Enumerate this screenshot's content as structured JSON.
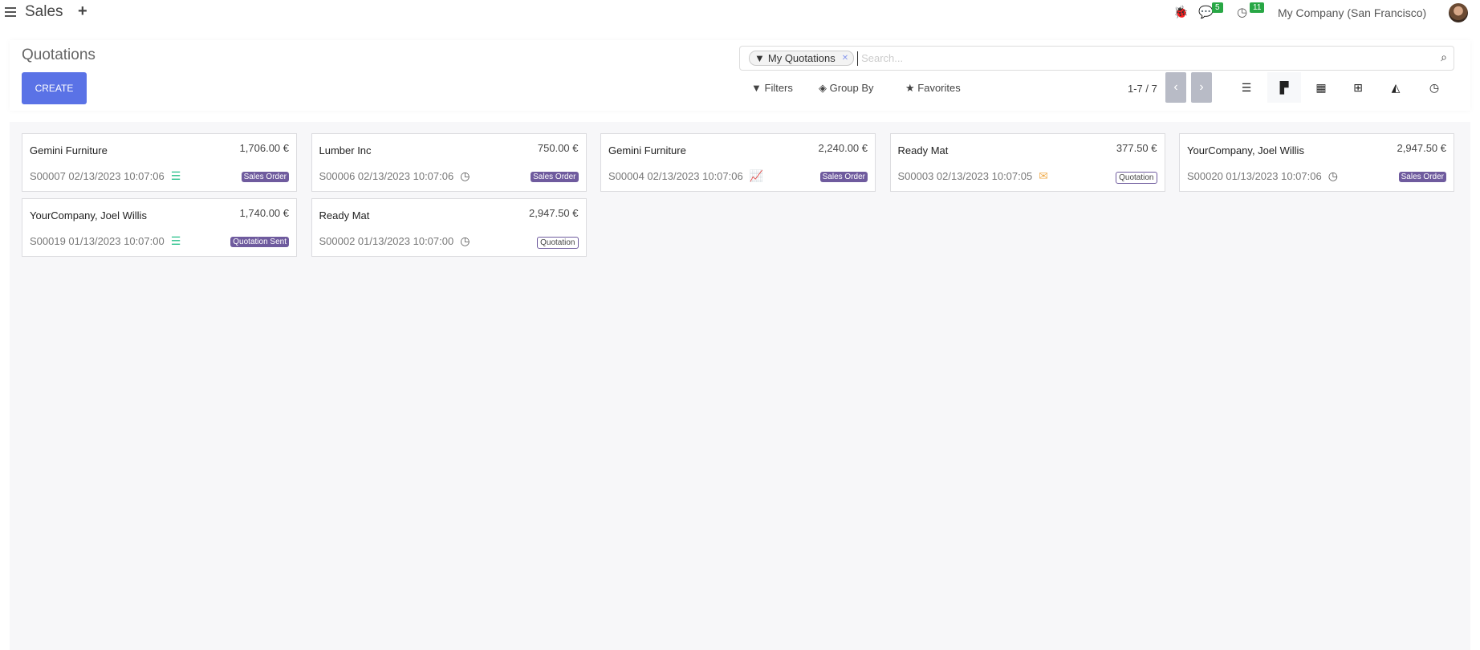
{
  "topbar": {
    "app_name": "Sales",
    "plus": "+",
    "messages_count": "5",
    "activities_count": "11",
    "company": "My Company (San Francisco)"
  },
  "control_panel": {
    "title": "Quotations",
    "create_label": "CREATE",
    "search": {
      "facet": "My Quotations",
      "placeholder": "Search..."
    },
    "filters_label": "Filters",
    "group_by_label": "Group By",
    "favorites_label": "Favorites",
    "pager": "1-7 / 7",
    "views": [
      "list",
      "kanban",
      "calendar",
      "pivot",
      "graph",
      "activity"
    ],
    "active_view": "kanban"
  },
  "colors": {
    "primary": "#5a72e6",
    "tag": "#6f5b9e",
    "green": "#28c08a",
    "orange": "#f0ad4e"
  },
  "cards": [
    {
      "customer": "Gemini Furniture",
      "amount": "1,706.00 €",
      "ref": "S00007 02/13/2023 10:07:06",
      "icon": "tasks-icon",
      "tag": "Sales Order",
      "tag_style": "filled"
    },
    {
      "customer": "Lumber Inc",
      "amount": "750.00 €",
      "ref": "S00006 02/13/2023 10:07:06",
      "icon": "clock-icon",
      "tag": "Sales Order",
      "tag_style": "filled"
    },
    {
      "customer": "Gemini Furniture",
      "amount": "2,240.00 €",
      "ref": "S00004 02/13/2023 10:07:06",
      "icon": "line-chart-icon",
      "tag": "Sales Order",
      "tag_style": "filled"
    },
    {
      "customer": "Ready Mat",
      "amount": "377.50 €",
      "ref": "S00003 02/13/2023 10:07:05",
      "icon": "envelope-icon",
      "tag": "Quotation",
      "tag_style": "outline"
    },
    {
      "customer": "YourCompany, Joel Willis",
      "amount": "2,947.50 €",
      "ref": "S00020 01/13/2023 10:07:06",
      "icon": "clock-icon",
      "tag": "Sales Order",
      "tag_style": "filled"
    },
    {
      "customer": "YourCompany, Joel Willis",
      "amount": "1,740.00 €",
      "ref": "S00019 01/13/2023 10:07:00",
      "icon": "tasks-icon",
      "tag": "Quotation Sent",
      "tag_style": "filled"
    },
    {
      "customer": "Ready Mat",
      "amount": "2,947.50 €",
      "ref": "S00002 01/13/2023 10:07:00",
      "icon": "clock-icon",
      "tag": "Quotation",
      "tag_style": "outline"
    }
  ]
}
